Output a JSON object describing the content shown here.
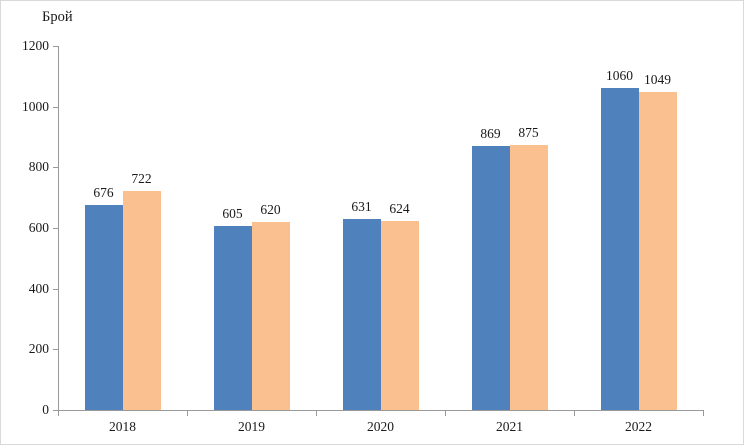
{
  "page": {
    "background": "#ffffff",
    "border_color": "#d9d9d9",
    "axis_color": "#999999",
    "text_color": "#1a1a1a"
  },
  "chart_data": {
    "type": "bar",
    "title": "Брой",
    "ylabel": "Брой",
    "xlabel": "",
    "categories": [
      "2018",
      "2019",
      "2020",
      "2021",
      "2022"
    ],
    "series": [
      {
        "name": "blue",
        "color": "#4F81BD",
        "values": [
          676,
          605,
          631,
          869,
          1060
        ]
      },
      {
        "name": "orange",
        "color": "#FAC090",
        "values": [
          722,
          620,
          624,
          875,
          1049
        ]
      }
    ],
    "data_labels": true,
    "ylim": [
      0,
      1200
    ],
    "yticks": [
      0,
      200,
      400,
      600,
      800,
      1000,
      1200
    ],
    "grid": false,
    "legend": "none"
  }
}
